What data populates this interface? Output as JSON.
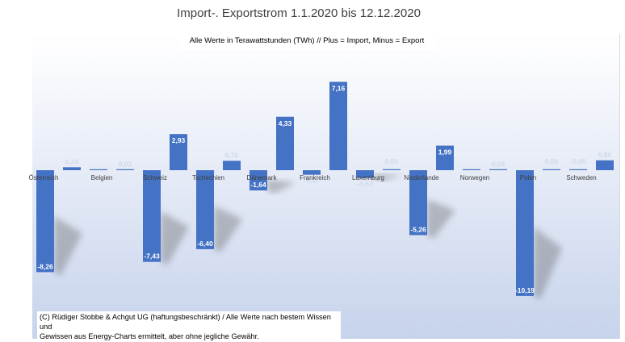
{
  "chart_data": {
    "type": "bar",
    "title": "Import-. Exportstrom 1.1.2020 bis 12.12.2020",
    "subtitle": "Alle Werte in Terawattstunden (TWh) // Plus = Import, Minus = Export",
    "categories": [
      "Österreich",
      "",
      "Belgien",
      "",
      "Schweiz",
      "",
      "Tschechien",
      "",
      "Dänemark",
      "",
      "Frankreich",
      "",
      "Luxemburg",
      "",
      "Niederlande",
      "",
      "Norwegen",
      "",
      "Polen",
      "",
      "Schweden",
      ""
    ],
    "values": [
      -8.26,
      0.24,
      0.0,
      0.03,
      -7.43,
      2.93,
      -6.4,
      0.76,
      -1.64,
      4.33,
      -0.37,
      7.16,
      -0.63,
      0.0,
      -5.26,
      1.99,
      0.0,
      0.04,
      -10.19,
      0.0,
      -0.0,
      0.8
    ],
    "value_labels": [
      "-8,26",
      "0,24",
      "",
      "0,03",
      "-7,43",
      "2,93",
      "-6,40",
      "0,76",
      "-1,64",
      "4,33",
      "-0,37",
      "7,16",
      "-0,63",
      "0,00",
      "-5,26",
      "1,99",
      "",
      "0,04",
      "-10,19",
      "0,00",
      "-0,00",
      "0,80"
    ],
    "ylim": [
      -11,
      8.2
    ],
    "grid": false,
    "colors": {
      "bar": "#4472c4",
      "background_top": "#ffffff",
      "background_bottom": "#c7d3ec"
    }
  },
  "credits_line1": "(C) Rüdiger Stobbe & Achgut UG (haftungsbeschränkt) / Alle Werte nach bestem Wissen und",
  "credits_line2": "Gewissen aus Energy-Charts ermittelt, aber ohne jegliche Gewähr."
}
